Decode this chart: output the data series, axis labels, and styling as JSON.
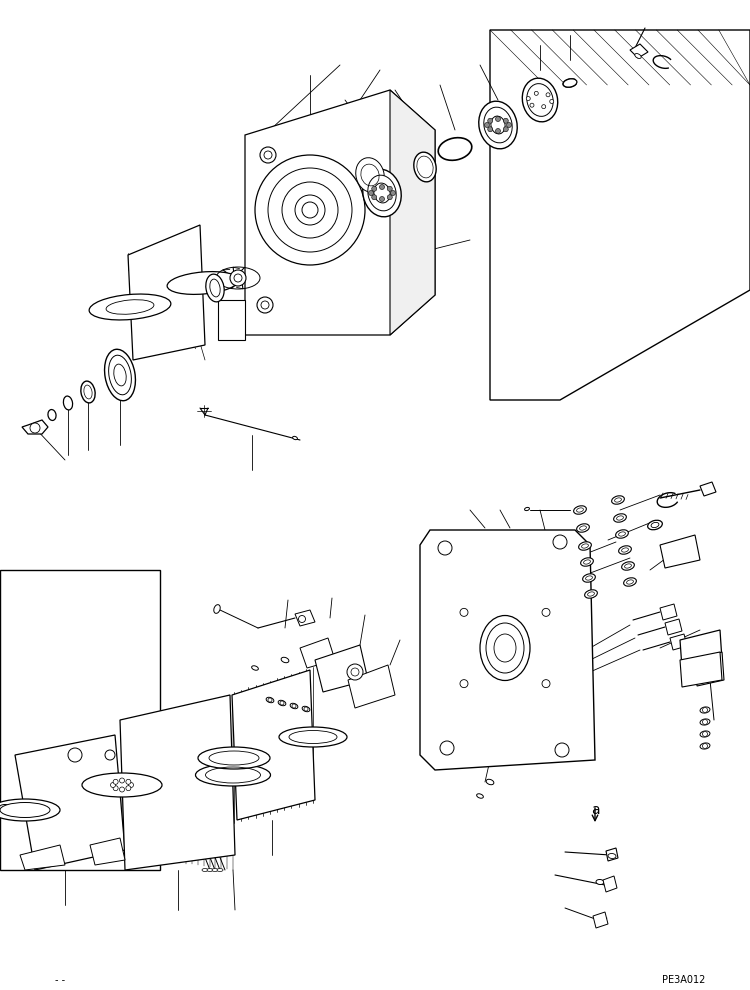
{
  "bg_color": "#ffffff",
  "line_color": "#000000",
  "fig_width": 7.5,
  "fig_height": 9.9,
  "dpi": 100,
  "bottom_left_text": "- -",
  "bottom_right_text": "PE3A012"
}
